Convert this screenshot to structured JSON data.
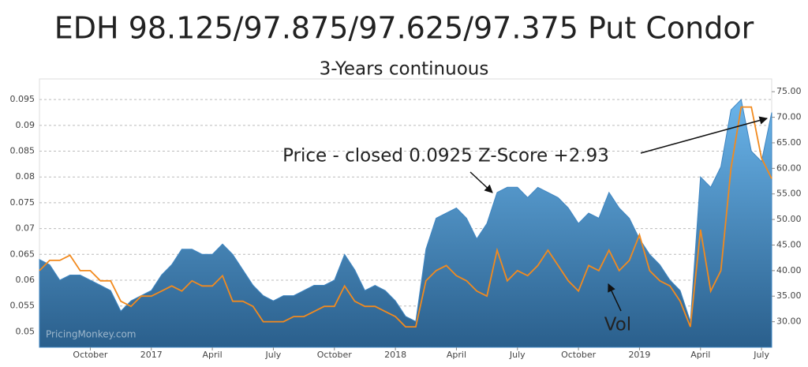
{
  "chart_data": {
    "type": "area-line",
    "title": "EDH 98.125/97.875/97.625/97.375 Put Condor",
    "subtitle": "3-Years continuous",
    "annotations": [
      "Price - closed 0.0925 Z-Score +2.93",
      "Vol"
    ],
    "watermark": "PricingMonkey.com",
    "categories": [
      null,
      null,
      null,
      null,
      null,
      "October",
      null,
      null,
      null,
      null,
      null,
      "2017",
      null,
      null,
      null,
      null,
      null,
      "April",
      null,
      null,
      null,
      null,
      null,
      "July",
      null,
      null,
      null,
      null,
      null,
      "October",
      null,
      null,
      null,
      null,
      null,
      "2018",
      null,
      null,
      null,
      null,
      null,
      "April",
      null,
      null,
      null,
      null,
      null,
      "July",
      null,
      null,
      null,
      null,
      null,
      "October",
      null,
      null,
      null,
      null,
      null,
      "2019",
      null,
      null,
      null,
      null,
      null,
      "April",
      null,
      null,
      null,
      null,
      null,
      "July",
      null
    ],
    "series": [
      {
        "color": "#3f86c2",
        "values": [
          0.064,
          0.063,
          0.06,
          0.061,
          0.061,
          0.06,
          0.059,
          0.058,
          0.054,
          0.056,
          0.057,
          0.058,
          0.061,
          0.063,
          0.066,
          0.066,
          0.065,
          0.065,
          0.067,
          0.065,
          0.062,
          0.059,
          0.057,
          0.056,
          0.057,
          0.057,
          0.058,
          0.059,
          0.059,
          0.06,
          0.065,
          0.062,
          0.058,
          0.059,
          0.058,
          0.056,
          0.053,
          0.052,
          0.066,
          0.072,
          0.073,
          0.074,
          0.072,
          0.068,
          0.071,
          0.077,
          0.078,
          0.078,
          0.076,
          0.078,
          0.077,
          0.076,
          0.074,
          0.071,
          0.073,
          0.072,
          0.077,
          0.074,
          0.072,
          0.068,
          0.065,
          0.063,
          0.06,
          0.058,
          0.052,
          0.08,
          0.078,
          0.082,
          0.093,
          0.095,
          0.085,
          0.083,
          0.0925
        ]
      },
      {
        "color": "#f28a1e",
        "axis": "y2",
        "values": [
          40,
          42,
          42,
          43,
          40,
          40,
          38,
          38,
          34,
          33,
          35,
          35,
          36,
          37,
          36,
          38,
          37,
          37,
          39,
          34,
          34,
          33,
          30,
          30,
          30,
          31,
          31,
          32,
          33,
          33,
          37,
          34,
          33,
          33,
          32,
          31,
          29,
          29,
          38,
          40,
          41,
          39,
          38,
          36,
          35,
          44,
          38,
          40,
          39,
          41,
          44,
          41,
          38,
          36,
          41,
          40,
          44,
          40,
          42,
          47,
          40,
          38,
          37,
          34,
          29,
          48,
          36,
          40,
          60,
          72,
          72,
          62,
          58
        ]
      }
    ],
    "ylim": [
      0.047,
      0.099
    ],
    "yticks": [
      0.05,
      0.055,
      0.06,
      0.065,
      0.07,
      0.075,
      0.08,
      0.085,
      0.09,
      0.095
    ],
    "y2lim": [
      25,
      77.5
    ],
    "y2ticks": [
      {
        "value": 30,
        "label": "30.00"
      },
      {
        "value": 35,
        "label": "35.00"
      },
      {
        "value": 40,
        "label": "40.00"
      },
      {
        "value": 45,
        "label": "45.00"
      },
      {
        "value": 50,
        "label": "50.00"
      },
      {
        "value": 55,
        "label": "55.00"
      },
      {
        "value": 60,
        "label": "60.00"
      },
      {
        "value": 65,
        "label": "65.00"
      },
      {
        "value": 70,
        "label": "70.00"
      },
      {
        "value": 75,
        "label": "75.00"
      }
    ],
    "grid": true
  }
}
